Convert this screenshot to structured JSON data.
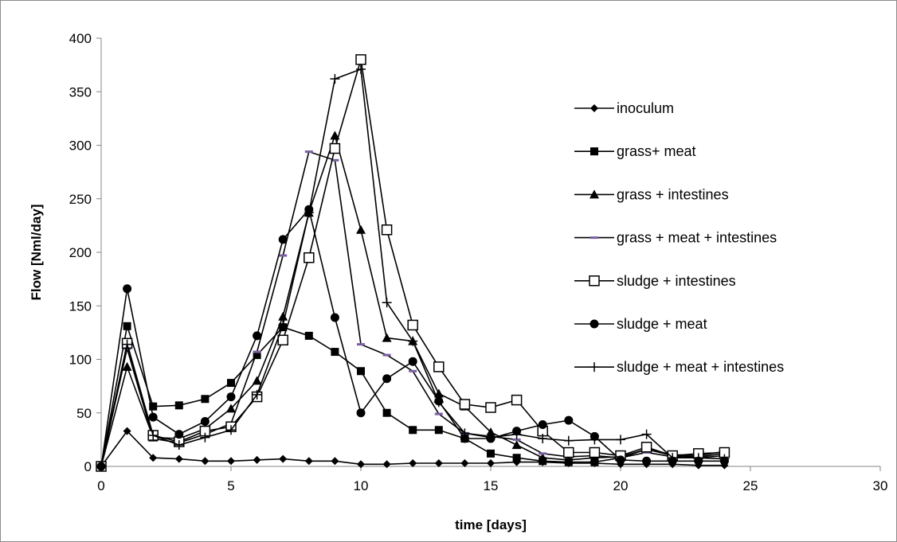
{
  "chart_data": {
    "type": "line",
    "title": "",
    "xlabel": "time [days]",
    "ylabel": "Flow [Nml/day]",
    "xlim": [
      0,
      30
    ],
    "ylim": [
      0,
      400
    ],
    "xticks": [
      "0",
      "5",
      "10",
      "15",
      "20",
      "25",
      "30"
    ],
    "yticks": [
      "0",
      "50",
      "100",
      "150",
      "200",
      "250",
      "300",
      "350",
      "400"
    ],
    "grid": false,
    "legend_position": "right",
    "series": [
      {
        "name": "inoculum",
        "marker": "diamond",
        "x": [
          0,
          1,
          2,
          3,
          4,
          5,
          6,
          7,
          8,
          9,
          10,
          11,
          12,
          13,
          14,
          15,
          16,
          17,
          18,
          19,
          20,
          21,
          22,
          23,
          24
        ],
        "y": [
          0,
          33,
          8,
          7,
          5,
          5,
          6,
          7,
          5,
          5,
          2,
          2,
          3,
          3,
          3,
          3,
          4,
          4,
          3,
          3,
          2,
          2,
          2,
          1,
          1
        ]
      },
      {
        "name": "grass+ meat",
        "marker": "square",
        "x": [
          0,
          1,
          2,
          3,
          4,
          5,
          6,
          7,
          8,
          9,
          10,
          11,
          12,
          13,
          14,
          15,
          16,
          17,
          18,
          19,
          20,
          21,
          22,
          23,
          24
        ],
        "y": [
          0,
          131,
          56,
          57,
          63,
          78,
          104,
          130,
          122,
          107,
          89,
          50,
          34,
          34,
          26,
          12,
          8,
          5,
          4,
          4,
          8,
          16,
          11,
          10,
          14
        ]
      },
      {
        "name": "grass + intestines",
        "marker": "triangle",
        "x": [
          0,
          1,
          2,
          3,
          4,
          5,
          6,
          7,
          8,
          9,
          10,
          11,
          12,
          13,
          14,
          15,
          16,
          17,
          18,
          19,
          20,
          21,
          22,
          23,
          24
        ],
        "y": [
          0,
          93,
          27,
          26,
          35,
          54,
          80,
          140,
          237,
          309,
          221,
          120,
          117,
          68,
          56,
          32,
          20,
          8,
          6,
          8,
          9,
          16,
          10,
          9,
          12
        ]
      },
      {
        "name": "grass + meat + intestines",
        "marker": "dash",
        "x": [
          0,
          1,
          2,
          3,
          4,
          5,
          6,
          7,
          8,
          9,
          10,
          11,
          12,
          13,
          14,
          15,
          16,
          17,
          18,
          19,
          20,
          21,
          22,
          23,
          24
        ],
        "y": [
          0,
          110,
          26,
          22,
          30,
          40,
          107,
          197,
          294,
          286,
          114,
          104,
          89,
          49,
          31,
          28,
          25,
          12,
          9,
          10,
          8,
          13,
          9,
          8,
          10
        ]
      },
      {
        "name": "sludge + intestines",
        "marker": "open-square",
        "x": [
          0,
          1,
          2,
          3,
          4,
          5,
          6,
          7,
          8,
          9,
          10,
          11,
          12,
          13,
          14,
          15,
          16,
          17,
          18,
          19,
          20,
          21,
          22,
          23,
          24
        ],
        "y": [
          0,
          115,
          29,
          23,
          33,
          37,
          65,
          118,
          195,
          297,
          380,
          221,
          132,
          93,
          58,
          55,
          62,
          33,
          13,
          13,
          10,
          18,
          10,
          12,
          13
        ]
      },
      {
        "name": "sludge + meat",
        "marker": "circle",
        "x": [
          0,
          1,
          2,
          3,
          4,
          5,
          6,
          7,
          8,
          9,
          10,
          11,
          12,
          13,
          14,
          15,
          16,
          17,
          18,
          19,
          20,
          21,
          22,
          23,
          24
        ],
        "y": [
          0,
          166,
          46,
          30,
          42,
          65,
          122,
          212,
          240,
          139,
          50,
          82,
          98,
          61,
          26,
          26,
          33,
          39,
          43,
          28,
          6,
          5,
          5,
          5,
          5
        ]
      },
      {
        "name": "sludge + meat + intestines",
        "marker": "plus",
        "x": [
          0,
          1,
          2,
          3,
          4,
          5,
          6,
          7,
          8,
          9,
          10,
          11,
          12,
          13,
          14,
          15,
          16,
          17,
          18,
          19,
          20,
          21,
          22,
          23,
          24
        ],
        "y": [
          0,
          114,
          29,
          20,
          27,
          34,
          67,
          132,
          237,
          362,
          371,
          153,
          117,
          60,
          31,
          27,
          30,
          26,
          24,
          25,
          25,
          30,
          8,
          8,
          7
        ]
      }
    ]
  }
}
